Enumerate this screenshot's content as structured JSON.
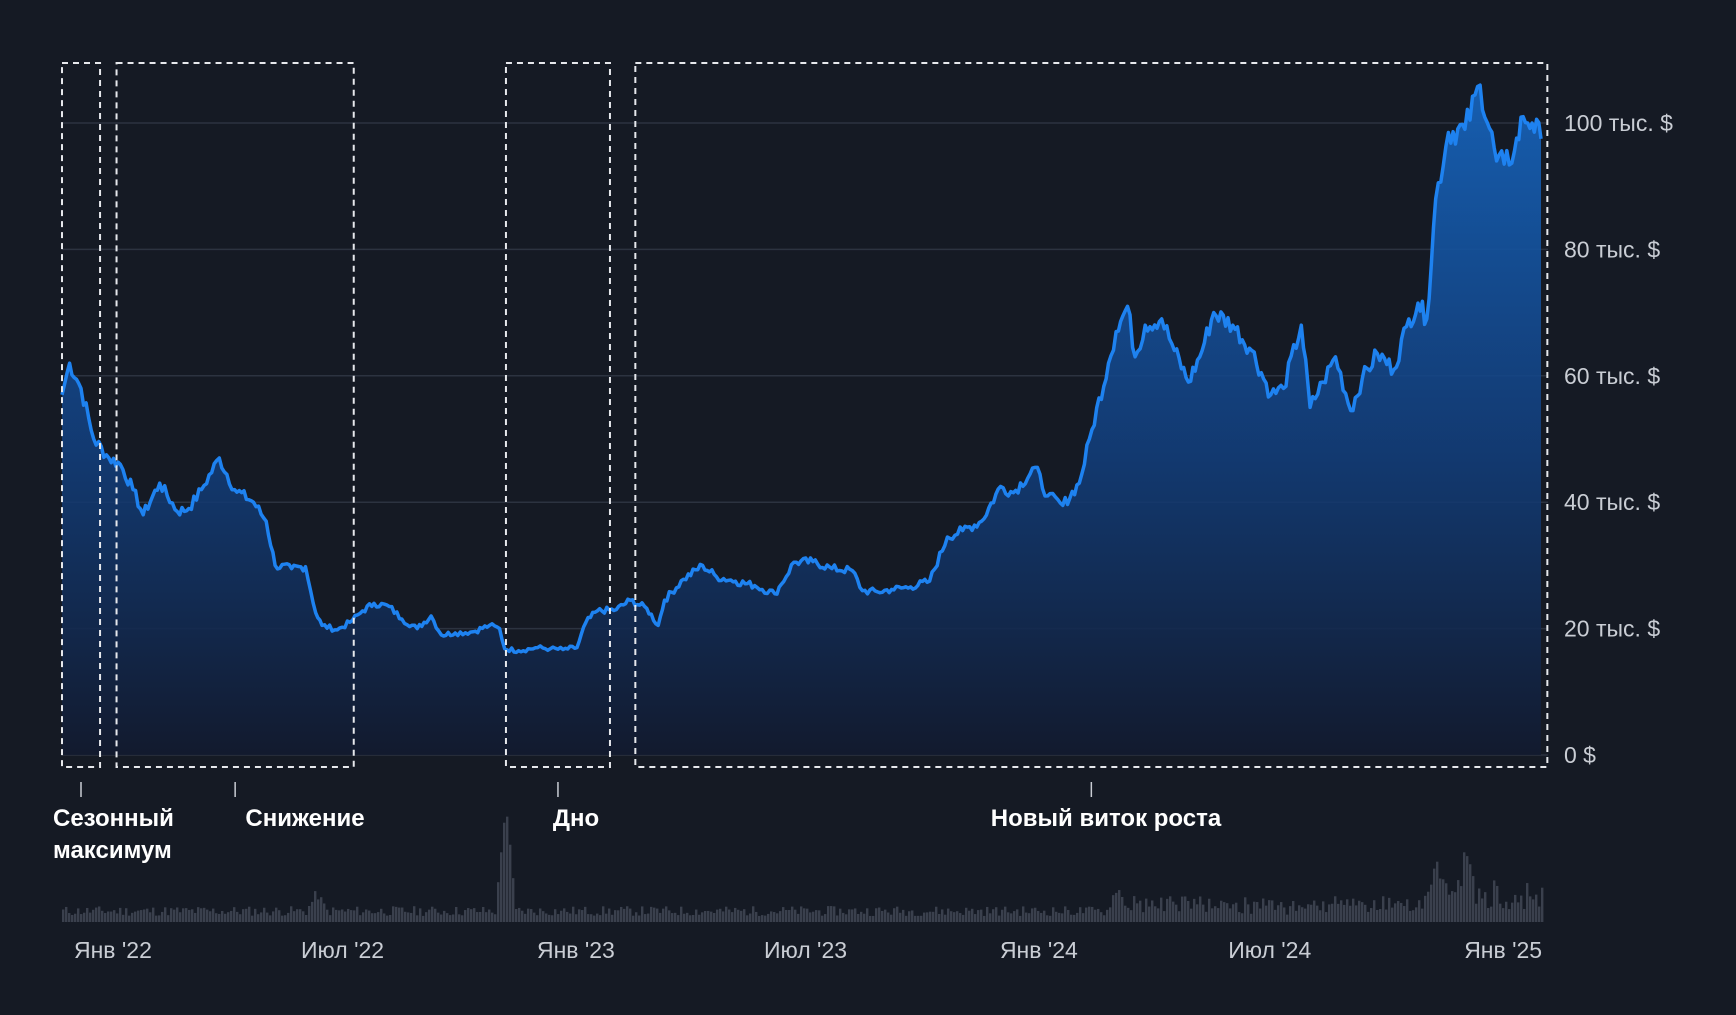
{
  "chart_data": {
    "type": "area",
    "title": "",
    "xlabel": "",
    "ylabel": "",
    "x_range": [
      "2021-11-25",
      "2025-02-03"
    ],
    "ylim": [
      0,
      100000
    ],
    "y_ticks": [
      {
        "value": 0,
        "label": "0 $"
      },
      {
        "value": 20000,
        "label": "20 тыс. $"
      },
      {
        "value": 40000,
        "label": "40 тыс. $"
      },
      {
        "value": 60000,
        "label": "60 тыс. $"
      },
      {
        "value": 80000,
        "label": "80 тыс. $"
      },
      {
        "value": 100000,
        "label": "100 тыс. $"
      }
    ],
    "x_ticks": [
      {
        "date": "2022-01-01",
        "label": "Янв '22"
      },
      {
        "date": "2022-07-01",
        "label": "Июл '22"
      },
      {
        "date": "2023-01-01",
        "label": "Янв '23"
      },
      {
        "date": "2023-07-01",
        "label": "Июл '23"
      },
      {
        "date": "2024-01-01",
        "label": "Янв '24"
      },
      {
        "date": "2024-07-01",
        "label": "Июл '24"
      },
      {
        "date": "2025-01-01",
        "label": "Янв '25"
      }
    ],
    "grid": true,
    "colors": {
      "line": "#1e82f0",
      "fill_top": "#1662b8",
      "fill_bottom": "#111a30",
      "volume": "#3a404d",
      "grid": "#2c3340",
      "background": "#151a24"
    },
    "price_series": {
      "x": [
        "2021-11-25",
        "2021-12-01",
        "2021-12-10",
        "2021-12-20",
        "2022-01-01",
        "2022-01-10",
        "2022-01-20",
        "2022-01-28",
        "2022-02-10",
        "2022-02-24",
        "2022-03-05",
        "2022-03-15",
        "2022-03-29",
        "2022-04-10",
        "2022-04-25",
        "2022-05-05",
        "2022-05-12",
        "2022-05-25",
        "2022-06-05",
        "2022-06-13",
        "2022-06-18",
        "2022-06-30",
        "2022-07-10",
        "2022-07-20",
        "2022-07-29",
        "2022-08-10",
        "2022-08-20",
        "2022-09-01",
        "2022-09-12",
        "2022-09-20",
        "2022-10-01",
        "2022-10-15",
        "2022-10-28",
        "2022-11-05",
        "2022-11-09",
        "2022-11-20",
        "2022-12-05",
        "2022-12-15",
        "2022-12-25",
        "2023-01-05",
        "2023-01-12",
        "2023-01-21",
        "2023-02-05",
        "2023-02-16",
        "2023-03-01",
        "2023-03-10",
        "2023-03-15",
        "2023-03-30",
        "2023-04-14",
        "2023-04-25",
        "2023-05-10",
        "2023-05-25",
        "2023-06-10",
        "2023-06-15",
        "2023-06-25",
        "2023-07-10",
        "2023-07-25",
        "2023-08-10",
        "2023-08-18",
        "2023-08-30",
        "2023-09-10",
        "2023-09-25",
        "2023-10-10",
        "2023-10-24",
        "2023-11-05",
        "2023-11-20",
        "2023-12-05",
        "2023-12-15",
        "2024-01-01",
        "2024-01-11",
        "2024-01-23",
        "2024-02-05",
        "2024-02-15",
        "2024-02-28",
        "2024-03-05",
        "2024-03-14",
        "2024-03-20",
        "2024-03-28",
        "2024-04-10",
        "2024-04-20",
        "2024-05-01",
        "2024-05-10",
        "2024-05-21",
        "2024-06-05",
        "2024-06-20",
        "2024-07-05",
        "2024-07-15",
        "2024-07-29",
        "2024-08-05",
        "2024-08-15",
        "2024-08-25",
        "2024-09-06",
        "2024-09-15",
        "2024-09-27",
        "2024-10-10",
        "2024-10-20",
        "2024-10-29",
        "2024-11-05",
        "2024-11-12",
        "2024-11-22",
        "2024-12-05",
        "2024-12-17",
        "2024-12-30",
        "2025-01-05",
        "2025-01-13",
        "2025-01-20",
        "2025-01-27",
        "2025-02-03"
      ],
      "y": [
        57000,
        62000,
        58000,
        50000,
        47000,
        46000,
        42000,
        38000,
        43000,
        38500,
        39000,
        42000,
        47000,
        42000,
        40000,
        37000,
        30000,
        29500,
        29800,
        22500,
        20500,
        19800,
        21000,
        22800,
        24000,
        23500,
        21500,
        20000,
        22000,
        19000,
        19300,
        19500,
        20500,
        20000,
        16800,
        16500,
        17000,
        16800,
        16700,
        17000,
        21000,
        22800,
        23000,
        24500,
        23200,
        20500,
        24500,
        27800,
        30000,
        28200,
        27500,
        26800,
        25500,
        27000,
        30500,
        30600,
        29500,
        29200,
        26000,
        25800,
        26200,
        26600,
        27500,
        34500,
        35500,
        37000,
        42500,
        41500,
        45500,
        41000,
        39500,
        43000,
        51500,
        62000,
        67000,
        71000,
        63000,
        68000,
        69000,
        64000,
        59000,
        63000,
        70000,
        68000,
        64000,
        57000,
        58000,
        68000,
        55000,
        59000,
        63000,
        54500,
        59500,
        63500,
        61000,
        67800,
        71500,
        69000,
        88000,
        98500,
        99000,
        106000,
        94000,
        93500,
        95500,
        101000,
        100000,
        97500
      ],
      "series_name": ""
    },
    "volume_note": "trading volume bars shown without axis",
    "phases": [
      {
        "label": "Сезонный максимум",
        "start": "2021-11-25",
        "end": "2021-12-25"
      },
      {
        "label": "Снижение",
        "start": "2022-01-07",
        "end": "2022-07-13"
      },
      {
        "label": "Дно",
        "start": "2022-11-10",
        "end": "2023-01-31"
      },
      {
        "label": "Новый виток роста",
        "start": "2023-02-20",
        "end": "2025-02-08"
      }
    ],
    "annotations": [
      "Сезонный",
      "максимум",
      "Снижение",
      "Дно",
      "Новый виток роста"
    ]
  }
}
